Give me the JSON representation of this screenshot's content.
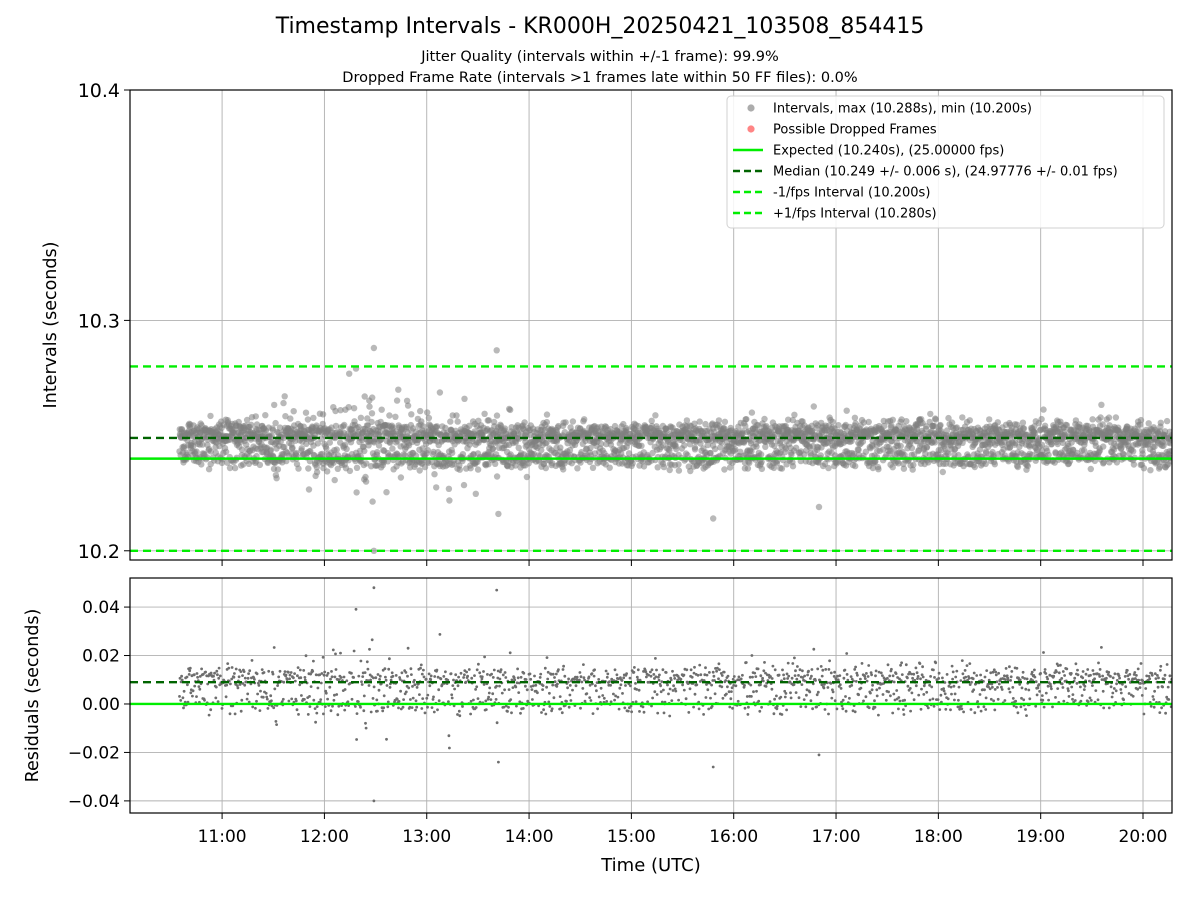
{
  "chart_data": [
    {
      "type": "scatter",
      "title": "Timestamp Intervals - KR000H_20250421_103508_854415",
      "subtitle_1": "Jitter Quality (intervals within +/-1 frame): 99.9%",
      "subtitle_2": "Dropped Frame Rate (intervals >1 frames late within 50 FF files): 0.0%",
      "xlabel": "",
      "ylabel": "Intervals (seconds)",
      "xlim": [
        "10:06",
        "20:17"
      ],
      "ylim": [
        10.196,
        10.4
      ],
      "yticks": [
        10.2,
        10.3,
        10.4
      ],
      "xticks": [
        "11:00",
        "12:00",
        "13:00",
        "14:00",
        "15:00",
        "16:00",
        "17:00",
        "18:00",
        "19:00",
        "20:00"
      ],
      "grid": true,
      "legend_position": "top-right",
      "series": [
        {
          "name": "Intervals, max (10.288s), min (10.200s)",
          "kind": "scatter",
          "color": "#808080",
          "x_range": [
            "10:35",
            "20:17"
          ],
          "count": 3500,
          "max": 10.288,
          "min": 10.2,
          "median": 10.249,
          "std": 0.006
        },
        {
          "name": "Possible Dropped Frames",
          "kind": "scatter",
          "color": "#ff4444",
          "values": []
        },
        {
          "name": "Expected (10.240s), (25.00000 fps)",
          "kind": "hline",
          "y": 10.24,
          "color": "#00ee00",
          "style": "solid"
        },
        {
          "name": "Median (10.249 +/- 0.006 s), (24.97776 +/- 0.01 fps)",
          "kind": "hline",
          "y": 10.249,
          "color": "#006400",
          "style": "dashed"
        },
        {
          "name": "-1/fps Interval (10.200s)",
          "kind": "hline",
          "y": 10.2,
          "color": "#00ee00",
          "style": "dashed"
        },
        {
          "name": "+1/fps Interval (10.280s)",
          "kind": "hline",
          "y": 10.28,
          "color": "#00ee00",
          "style": "dashed"
        }
      ],
      "notable_points": [
        {
          "x": "12:29",
          "y": 10.288
        },
        {
          "x": "13:41",
          "y": 10.287
        },
        {
          "x": "12:29",
          "y": 10.2
        },
        {
          "x": "15:48",
          "y": 10.214
        },
        {
          "x": "16:50",
          "y": 10.219
        },
        {
          "x": "13:42",
          "y": 10.216
        }
      ]
    },
    {
      "type": "scatter",
      "xlabel": "Time (UTC)",
      "ylabel": "Residuals (seconds)",
      "xlim": [
        "10:06",
        "20:17"
      ],
      "ylim": [
        -0.045,
        0.052
      ],
      "yticks": [
        -0.04,
        -0.02,
        0.0,
        0.02,
        0.04
      ],
      "ytick_labels": [
        "−0.04",
        "−0.02",
        "0.00",
        "0.02",
        "0.04"
      ],
      "xticks": [
        "11:00",
        "12:00",
        "13:00",
        "14:00",
        "15:00",
        "16:00",
        "17:00",
        "18:00",
        "19:00",
        "20:00"
      ],
      "grid": true,
      "series": [
        {
          "name": "",
          "kind": "scatter",
          "color": "#707070",
          "x_range": [
            "10:35",
            "20:17"
          ],
          "count": 1750,
          "max": 0.048,
          "min": -0.04
        },
        {
          "name": "",
          "kind": "hline",
          "y": 0.0,
          "color": "#00ee00",
          "style": "solid"
        },
        {
          "name": "",
          "kind": "hline",
          "y": 0.009,
          "color": "#006400",
          "style": "dashed"
        }
      ],
      "notable_points": [
        {
          "x": "12:29",
          "y": 0.048
        },
        {
          "x": "13:41",
          "y": 0.047
        },
        {
          "x": "12:29",
          "y": -0.04
        },
        {
          "x": "15:48",
          "y": -0.026
        },
        {
          "x": "16:50",
          "y": -0.021
        },
        {
          "x": "13:42",
          "y": -0.024
        }
      ]
    }
  ]
}
